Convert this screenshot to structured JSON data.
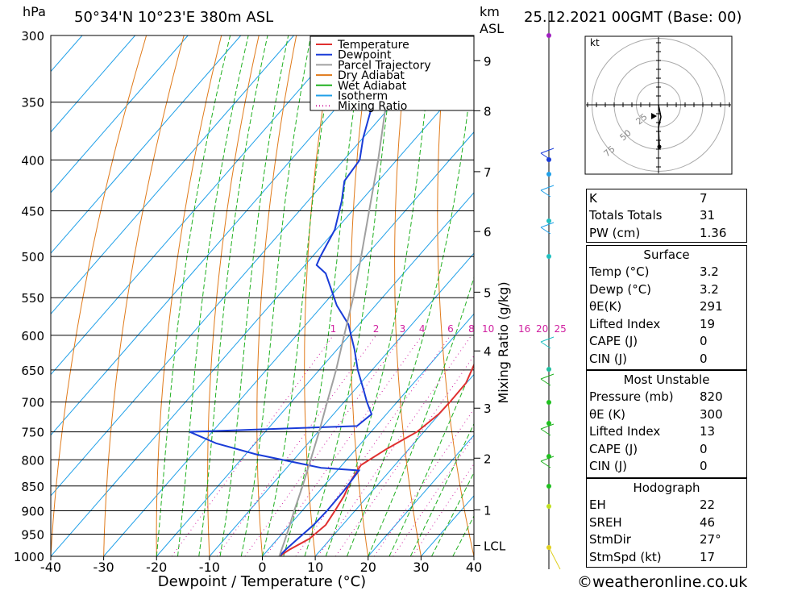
{
  "header": {
    "pressure_unit": "hPa",
    "location": "50°34'N  10°23'E  380m  ASL",
    "km_label": "km",
    "asl_label": "ASL",
    "datetime": "25.12.2021  00GMT  (Base: 00)"
  },
  "chart_data": {
    "type": "line",
    "xlabel": "Dewpoint / Temperature (°C)",
    "ylabel_right": "Mixing Ratio (g/kg)",
    "xlim": [
      -40,
      40
    ],
    "ylim_hPa": [
      1000,
      300
    ],
    "x_ticks": [
      -40,
      -30,
      -20,
      -10,
      0,
      10,
      20,
      30,
      40
    ],
    "pressure_levels": [
      300,
      350,
      400,
      450,
      500,
      550,
      600,
      650,
      700,
      750,
      800,
      850,
      900,
      950,
      1000
    ],
    "km_ticks": [
      {
        "label": "9",
        "p": 318
      },
      {
        "label": "8",
        "p": 357
      },
      {
        "label": "7",
        "p": 411
      },
      {
        "label": "6",
        "p": 472
      },
      {
        "label": "5",
        "p": 543
      },
      {
        "label": "4",
        "p": 622
      },
      {
        "label": "3",
        "p": 710
      },
      {
        "label": "2",
        "p": 797
      },
      {
        "label": "1",
        "p": 898
      },
      {
        "label": "LCL",
        "p": 975
      }
    ],
    "mixing_ratio_labels": [
      "1",
      "2",
      "3",
      "4",
      "6",
      "8",
      "10",
      "16",
      "20",
      "25"
    ],
    "legend": {
      "position": "top-right",
      "items": [
        {
          "name": "Temperature",
          "color": "#e03030",
          "style": "solid"
        },
        {
          "name": "Dewpoint",
          "color": "#1a3cd8",
          "style": "solid"
        },
        {
          "name": "Parcel Trajectory",
          "color": "#a0a0a0",
          "style": "solid"
        },
        {
          "name": "Dry Adiabat",
          "color": "#e07a1a",
          "style": "solid"
        },
        {
          "name": "Wet Adiabat",
          "color": "#20b020",
          "style": "solid"
        },
        {
          "name": "Isotherm",
          "color": "#20a0e8",
          "style": "solid"
        },
        {
          "name": "Mixing Ratio",
          "color": "#d020a0",
          "style": "dotted"
        }
      ]
    },
    "series": [
      {
        "name": "Temperature",
        "color": "#e03030",
        "points": [
          [
            1000,
            3.2
          ],
          [
            985,
            4.0
          ],
          [
            960,
            6.0
          ],
          [
            930,
            6.8
          ],
          [
            900,
            6.2
          ],
          [
            870,
            5.5
          ],
          [
            840,
            4.3
          ],
          [
            810,
            3.6
          ],
          [
            780,
            5.8
          ],
          [
            750,
            8.7
          ],
          [
            720,
            9.9
          ],
          [
            700,
            10.0
          ],
          [
            670,
            9.9
          ],
          [
            640,
            8.3
          ],
          [
            610,
            6.1
          ],
          [
            580,
            3.3
          ],
          [
            550,
            0.3
          ],
          [
            520,
            -3.2
          ],
          [
            500,
            -5.0
          ],
          [
            470,
            -8.7
          ],
          [
            440,
            -12.7
          ],
          [
            410,
            -17.0
          ],
          [
            400,
            -18.0
          ],
          [
            380,
            -21.0
          ],
          [
            350,
            -26.8
          ],
          [
            330,
            -30.9
          ],
          [
            300,
            -37.2
          ]
        ]
      },
      {
        "name": "Dewpoint",
        "color": "#1a3cd8",
        "points": [
          [
            1000,
            3.2
          ],
          [
            985,
            3.3
          ],
          [
            960,
            3.8
          ],
          [
            930,
            4.5
          ],
          [
            900,
            4.7
          ],
          [
            860,
            4.6
          ],
          [
            820,
            4.1
          ],
          [
            815,
            -3.5
          ],
          [
            790,
            -18.0
          ],
          [
            770,
            -27.4
          ],
          [
            750,
            -34.3
          ],
          [
            740,
            -3.6
          ],
          [
            720,
            -2.8
          ],
          [
            700,
            -5.7
          ],
          [
            680,
            -8.4
          ],
          [
            650,
            -12.7
          ],
          [
            620,
            -16.7
          ],
          [
            585,
            -22.0
          ],
          [
            560,
            -27.3
          ],
          [
            520,
            -34.7
          ],
          [
            510,
            -37.8
          ],
          [
            500,
            -38.5
          ],
          [
            470,
            -40.2
          ],
          [
            440,
            -43.6
          ],
          [
            420,
            -46.4
          ],
          [
            400,
            -47.0
          ],
          [
            380,
            -50.0
          ],
          [
            350,
            -54.0
          ],
          [
            320,
            -57.8
          ],
          [
            310,
            -60.3
          ],
          [
            300,
            -60.9
          ]
        ]
      },
      {
        "name": "Parcel Trajectory",
        "color": "#a0a0a0",
        "points": [
          [
            1000,
            3.2
          ],
          [
            970,
            1.9
          ],
          [
            940,
            0.5
          ],
          [
            900,
            -1.5
          ],
          [
            850,
            -4.0
          ],
          [
            800,
            -6.8
          ],
          [
            750,
            -9.8
          ],
          [
            700,
            -13.2
          ],
          [
            650,
            -16.8
          ],
          [
            600,
            -21.0
          ],
          [
            550,
            -25.5
          ],
          [
            500,
            -30.8
          ],
          [
            450,
            -36.8
          ],
          [
            400,
            -43.5
          ],
          [
            350,
            -51.5
          ],
          [
            300,
            -61.0
          ]
        ]
      }
    ]
  },
  "hodograph": {
    "unit_label": "kt",
    "rings": [
      "25",
      "50",
      "75"
    ]
  },
  "indices": [
    {
      "label": "K",
      "value": "7"
    },
    {
      "label": "Totals Totals",
      "value": "31"
    },
    {
      "label": "PW (cm)",
      "value": "1.36"
    }
  ],
  "surface": {
    "title": "Surface",
    "rows": [
      {
        "label": "Temp (°C)",
        "value": "3.2"
      },
      {
        "label": "Dewp (°C)",
        "value": "3.2"
      },
      {
        "label": "θE(K)",
        "value": "291"
      },
      {
        "label": "Lifted Index",
        "value": "19"
      },
      {
        "label": "CAPE (J)",
        "value": "0"
      },
      {
        "label": "CIN (J)",
        "value": "0"
      }
    ]
  },
  "most_unstable": {
    "title": "Most Unstable",
    "rows": [
      {
        "label": "Pressure (mb)",
        "value": "820"
      },
      {
        "label": "θE (K)",
        "value": "300"
      },
      {
        "label": "Lifted Index",
        "value": "13"
      },
      {
        "label": "CAPE (J)",
        "value": "0"
      },
      {
        "label": "CIN (J)",
        "value": "0"
      }
    ]
  },
  "hodograph_table": {
    "title": "Hodograph",
    "rows": [
      {
        "label": "EH",
        "value": "22"
      },
      {
        "label": "SREH",
        "value": "46"
      },
      {
        "label": "StmDir",
        "value": "27°"
      },
      {
        "label": "StmSpd (kt)",
        "value": "17"
      }
    ]
  },
  "footer": {
    "copyright": "©weatheronline.co.uk"
  }
}
